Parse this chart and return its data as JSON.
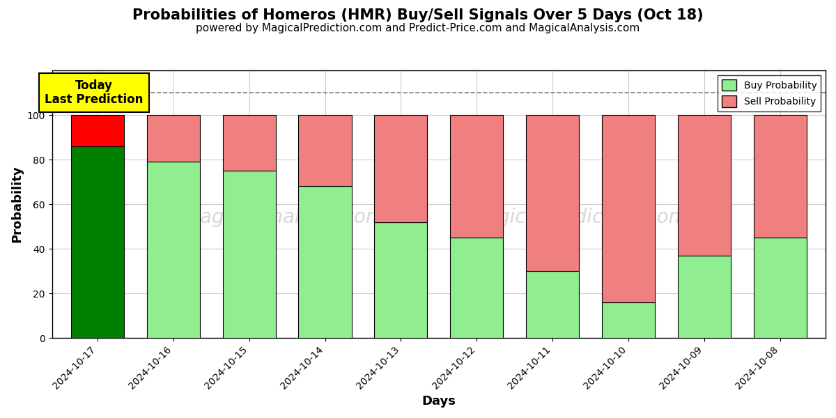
{
  "title": "Probabilities of Homeros (HMR) Buy/Sell Signals Over 5 Days (Oct 18)",
  "subtitle": "powered by MagicalPrediction.com and Predict-Price.com and MagicalAnalysis.com",
  "xlabel": "Days",
  "ylabel": "Probability",
  "dates": [
    "2024-10-17",
    "2024-10-16",
    "2024-10-15",
    "2024-10-14",
    "2024-10-13",
    "2024-10-12",
    "2024-10-11",
    "2024-10-10",
    "2024-10-09",
    "2024-10-08"
  ],
  "buy_probs": [
    86,
    79,
    75,
    68,
    52,
    45,
    30,
    16,
    37,
    45
  ],
  "sell_probs": [
    14,
    21,
    25,
    32,
    48,
    55,
    70,
    84,
    63,
    55
  ],
  "today_buy_color": "#008000",
  "today_sell_color": "#FF0000",
  "buy_color": "#90EE90",
  "sell_color": "#F08080",
  "today_annotation": "Today\nLast Prediction",
  "ylim": [
    0,
    120
  ],
  "dashed_line_y": 110,
  "legend_buy": "Buy Probability",
  "legend_sell": "Sell Probability",
  "bar_edgecolor": "#000000",
  "background_color": "#ffffff",
  "grid_color": "#cccccc",
  "title_fontsize": 15,
  "subtitle_fontsize": 11,
  "axis_label_fontsize": 13,
  "tick_fontsize": 10,
  "bar_width": 0.7
}
